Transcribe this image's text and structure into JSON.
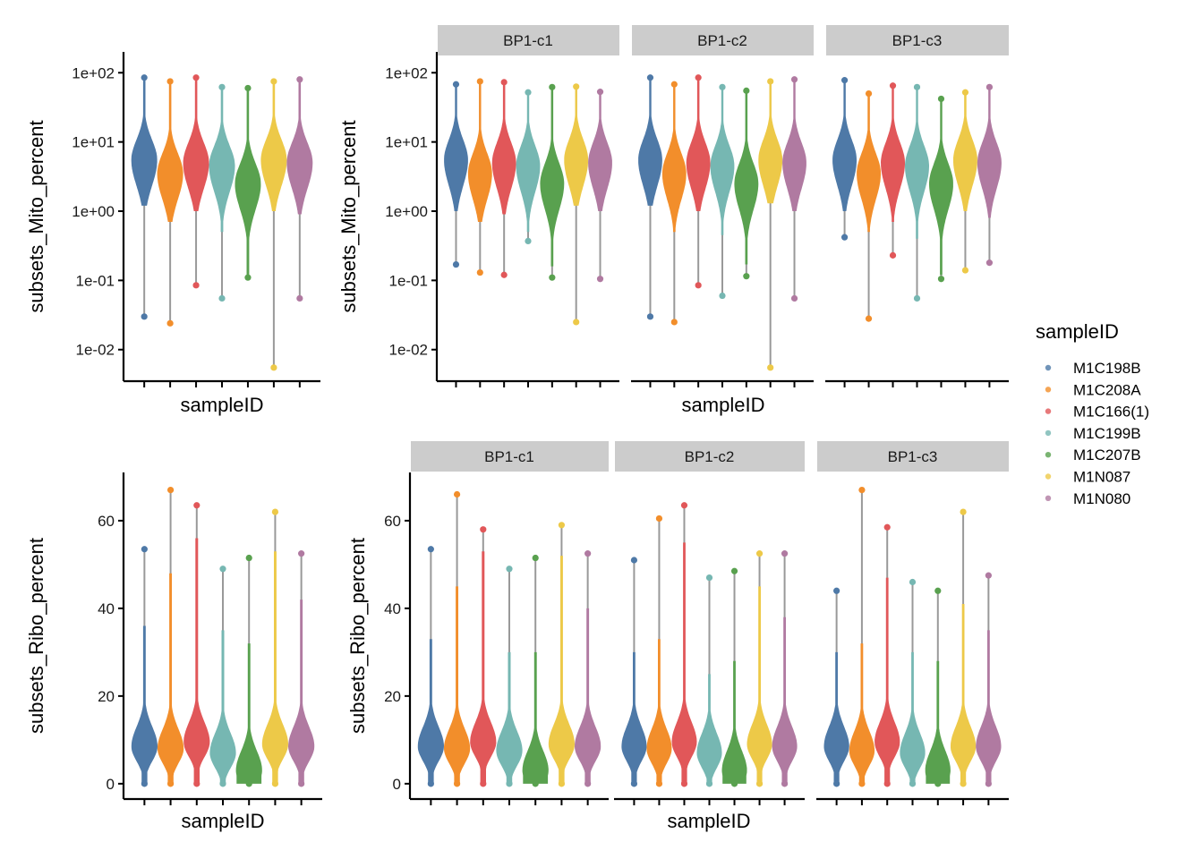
{
  "legend": {
    "title": "sampleID",
    "items": [
      {
        "label": "M1C198B",
        "color": "#4E79A7"
      },
      {
        "label": "M1C208A",
        "color": "#F28E2B"
      },
      {
        "label": "M1C166(1)",
        "color": "#E15759"
      },
      {
        "label": "M1C199B",
        "color": "#76B7B2"
      },
      {
        "label": "M1C207B",
        "color": "#59A14F"
      },
      {
        "label": "M1N087",
        "color": "#EDC948"
      },
      {
        "label": "M1N080",
        "color": "#B07AA1"
      }
    ]
  },
  "whisker_color": "#999999",
  "strip_fill": "#CCCCCC",
  "chart_data": [
    {
      "id": "mito-overall",
      "type": "violin",
      "scale": "log10",
      "xlabel": "sampleID",
      "ylabel": "subsets_Mito_percent",
      "yticks": [
        0.01,
        0.1,
        1,
        10,
        100
      ],
      "ytick_labels": [
        "1e-02",
        "1e-01",
        "1e+00",
        "1e+01",
        "1e+02"
      ],
      "ylim": [
        0.0035,
        200
      ],
      "facets": [
        {
          "label": "",
          "series": [
            {
              "name": "M1C198B",
              "mode": 5.5,
              "min": 0.03,
              "max": 85,
              "body_low": 1.2
            },
            {
              "name": "M1C208A",
              "mode": 3.5,
              "min": 0.024,
              "max": 75,
              "body_low": 0.7
            },
            {
              "name": "M1C166(1)",
              "mode": 5.0,
              "min": 0.085,
              "max": 85,
              "body_low": 1.0
            },
            {
              "name": "M1C199B",
              "mode": 4.5,
              "min": 0.055,
              "max": 62,
              "body_low": 0.5
            },
            {
              "name": "M1C207B",
              "mode": 2.5,
              "min": 0.11,
              "max": 60,
              "body_low": 0.12
            },
            {
              "name": "M1N087",
              "mode": 5.5,
              "min": 0.0055,
              "max": 75,
              "body_low": 1.0
            },
            {
              "name": "M1N080",
              "mode": 5.0,
              "min": 0.055,
              "max": 80,
              "body_low": 0.9
            }
          ]
        }
      ]
    },
    {
      "id": "mito-by-group",
      "type": "violin",
      "scale": "log10",
      "xlabel": "sampleID",
      "ylabel": "subsets_Mito_percent",
      "yticks": [
        0.01,
        0.1,
        1,
        10,
        100
      ],
      "ytick_labels": [
        "1e-02",
        "1e-01",
        "1e+00",
        "1e+01",
        "1e+02"
      ],
      "ylim": [
        0.0035,
        200
      ],
      "facets": [
        {
          "label": "BP1-c1",
          "series": [
            {
              "name": "M1C198B",
              "mode": 5.5,
              "min": 0.17,
              "max": 68,
              "body_low": 1.0
            },
            {
              "name": "M1C208A",
              "mode": 3.5,
              "min": 0.13,
              "max": 75,
              "body_low": 0.7
            },
            {
              "name": "M1C166(1)",
              "mode": 5.0,
              "min": 0.12,
              "max": 73,
              "body_low": 0.9
            },
            {
              "name": "M1C199B",
              "mode": 4.5,
              "min": 0.37,
              "max": 52,
              "body_low": 0.5
            },
            {
              "name": "M1C207B",
              "mode": 2.5,
              "min": 0.11,
              "max": 62,
              "body_low": 0.16
            },
            {
              "name": "M1N087",
              "mode": 5.5,
              "min": 0.025,
              "max": 63,
              "body_low": 1.2
            },
            {
              "name": "M1N080",
              "mode": 5.0,
              "min": 0.105,
              "max": 53,
              "body_low": 1.0
            }
          ]
        },
        {
          "label": "BP1-c2",
          "series": [
            {
              "name": "M1C198B",
              "mode": 5.5,
              "min": 0.03,
              "max": 85,
              "body_low": 1.2
            },
            {
              "name": "M1C208A",
              "mode": 3.5,
              "min": 0.025,
              "max": 68,
              "body_low": 0.5
            },
            {
              "name": "M1C166(1)",
              "mode": 5.0,
              "min": 0.085,
              "max": 85,
              "body_low": 1.0
            },
            {
              "name": "M1C199B",
              "mode": 4.5,
              "min": 0.06,
              "max": 62,
              "body_low": 0.45
            },
            {
              "name": "M1C207B",
              "mode": 2.5,
              "min": 0.115,
              "max": 55,
              "body_low": 0.17
            },
            {
              "name": "M1N087",
              "mode": 5.5,
              "min": 0.0055,
              "max": 75,
              "body_low": 1.3
            },
            {
              "name": "M1N080",
              "mode": 5.0,
              "min": 0.055,
              "max": 80,
              "body_low": 1.0
            }
          ]
        },
        {
          "label": "BP1-c3",
          "series": [
            {
              "name": "M1C198B",
              "mode": 5.5,
              "min": 0.42,
              "max": 78,
              "body_low": 1.0
            },
            {
              "name": "M1C208A",
              "mode": 3.5,
              "min": 0.028,
              "max": 50,
              "body_low": 0.5
            },
            {
              "name": "M1C166(1)",
              "mode": 5.0,
              "min": 0.23,
              "max": 65,
              "body_low": 0.7
            },
            {
              "name": "M1C199B",
              "mode": 4.5,
              "min": 0.055,
              "max": 62,
              "body_low": 0.4
            },
            {
              "name": "M1C207B",
              "mode": 2.5,
              "min": 0.105,
              "max": 42,
              "body_low": 0.12
            },
            {
              "name": "M1N087",
              "mode": 5.5,
              "min": 0.14,
              "max": 52,
              "body_low": 1.0
            },
            {
              "name": "M1N080",
              "mode": 5.0,
              "min": 0.18,
              "max": 62,
              "body_low": 0.8
            }
          ]
        }
      ]
    },
    {
      "id": "ribo-overall",
      "type": "violin",
      "scale": "linear",
      "xlabel": "sampleID",
      "ylabel": "subsets_Ribo_percent",
      "yticks": [
        0,
        20,
        40,
        60
      ],
      "ytick_labels": [
        "0",
        "20",
        "40",
        "60"
      ],
      "ylim": [
        -3.5,
        71
      ],
      "facets": [
        {
          "label": "",
          "series": [
            {
              "name": "M1C198B",
              "mode": 8.5,
              "min": 0,
              "max": 53.5,
              "body_high": 36
            },
            {
              "name": "M1C208A",
              "mode": 8,
              "min": 0,
              "max": 67,
              "body_high": 48
            },
            {
              "name": "M1C166(1)",
              "mode": 9.5,
              "min": 0,
              "max": 63.5,
              "body_high": 56
            },
            {
              "name": "M1C199B",
              "mode": 7,
              "min": 0,
              "max": 49,
              "body_high": 35
            },
            {
              "name": "M1C207B",
              "mode": 3,
              "min": 0,
              "max": 51.5,
              "body_high": 32
            },
            {
              "name": "M1N087",
              "mode": 9,
              "min": 0,
              "max": 62,
              "body_high": 53
            },
            {
              "name": "M1N080",
              "mode": 8.5,
              "min": 0,
              "max": 52.5,
              "body_high": 42
            }
          ]
        }
      ]
    },
    {
      "id": "ribo-by-group",
      "type": "violin",
      "scale": "linear",
      "xlabel": "sampleID",
      "ylabel": "subsets_Ribo_percent",
      "yticks": [
        0,
        20,
        40,
        60
      ],
      "ytick_labels": [
        "0",
        "20",
        "40",
        "60"
      ],
      "ylim": [
        -3.5,
        71
      ],
      "facets": [
        {
          "label": "BP1-c1",
          "series": [
            {
              "name": "M1C198B",
              "mode": 8.5,
              "min": 0,
              "max": 53.5,
              "body_high": 33
            },
            {
              "name": "M1C208A",
              "mode": 8,
              "min": 0,
              "max": 66,
              "body_high": 45
            },
            {
              "name": "M1C166(1)",
              "mode": 9.5,
              "min": 0,
              "max": 58,
              "body_high": 53
            },
            {
              "name": "M1C199B",
              "mode": 7.5,
              "min": 0,
              "max": 49,
              "body_high": 30
            },
            {
              "name": "M1C207B",
              "mode": 3,
              "min": 0,
              "max": 51.5,
              "body_high": 30
            },
            {
              "name": "M1N087",
              "mode": 9,
              "min": 0,
              "max": 59,
              "body_high": 52
            },
            {
              "name": "M1N080",
              "mode": 8.5,
              "min": 0,
              "max": 52.5,
              "body_high": 40
            }
          ]
        },
        {
          "label": "BP1-c2",
          "series": [
            {
              "name": "M1C198B",
              "mode": 8.5,
              "min": 0,
              "max": 51,
              "body_high": 30
            },
            {
              "name": "M1C208A",
              "mode": 8,
              "min": 0,
              "max": 60.5,
              "body_high": 33
            },
            {
              "name": "M1C166(1)",
              "mode": 9.5,
              "min": 0,
              "max": 63.5,
              "body_high": 55
            },
            {
              "name": "M1C199B",
              "mode": 7,
              "min": 0,
              "max": 47,
              "body_high": 25
            },
            {
              "name": "M1C207B",
              "mode": 3,
              "min": 0,
              "max": 48.5,
              "body_high": 28
            },
            {
              "name": "M1N087",
              "mode": 9,
              "min": 0,
              "max": 52.5,
              "body_high": 45
            },
            {
              "name": "M1N080",
              "mode": 8.5,
              "min": 0,
              "max": 52.5,
              "body_high": 38
            }
          ]
        },
        {
          "label": "BP1-c3",
          "series": [
            {
              "name": "M1C198B",
              "mode": 8.5,
              "min": 0,
              "max": 44,
              "body_high": 30
            },
            {
              "name": "M1C208A",
              "mode": 7.5,
              "min": 0,
              "max": 67,
              "body_high": 32
            },
            {
              "name": "M1C166(1)",
              "mode": 9.5,
              "min": 0,
              "max": 58.5,
              "body_high": 47
            },
            {
              "name": "M1C199B",
              "mode": 7,
              "min": 0,
              "max": 46,
              "body_high": 30
            },
            {
              "name": "M1C207B",
              "mode": 3,
              "min": 0,
              "max": 44,
              "body_high": 28
            },
            {
              "name": "M1N087",
              "mode": 8.5,
              "min": 0,
              "max": 62,
              "body_high": 41
            },
            {
              "name": "M1N080",
              "mode": 8.5,
              "min": 0,
              "max": 47.5,
              "body_high": 35
            }
          ]
        }
      ]
    }
  ]
}
